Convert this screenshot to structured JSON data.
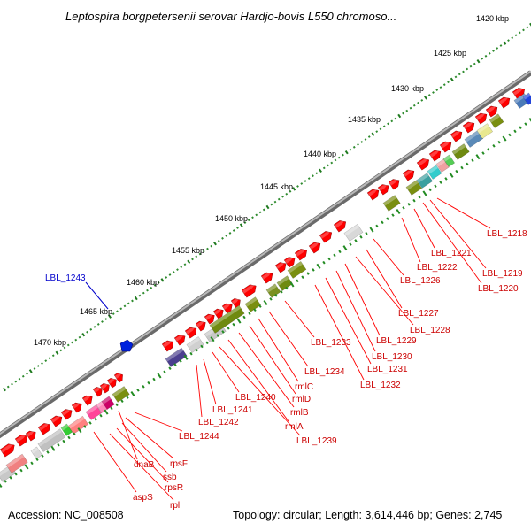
{
  "title": "Leptospira borgpetersenii serovar Hardjo-bovis L550 chromoso...",
  "footer": {
    "accession": "Accession: NC_008508",
    "topology": "Topology: circular; Length: 3,614,446 bp; Genes: 2,745"
  },
  "ticks": [
    "1420 kbp",
    "1425 kbp",
    "1430 kbp",
    "1435 kbp",
    "1440 kbp",
    "1445 kbp",
    "1450 kbp",
    "1455 kbp",
    "1460 kbp",
    "1465 kbp",
    "1470 kbp"
  ],
  "highlight_label": "LBL_1243",
  "gene_labels": [
    "LBL_1218",
    "LBL_1219",
    "LBL_1220",
    "LBL_1221",
    "LBL_1222",
    "LBL_1226",
    "LBL_1227",
    "LBL_1228",
    "LBL_1229",
    "LBL_1230",
    "LBL_1231",
    "LBL_1232",
    "LBL_1233",
    "LBL_1234",
    "rmlC",
    "rmlD",
    "rmlB",
    "rmlA",
    "LBL_1239",
    "LBL_1240",
    "LBL_1241",
    "LBL_1242",
    "LBL_1244",
    "dnaB",
    "rpsF",
    "ssb",
    "rpsR",
    "aspS",
    "rplI"
  ],
  "colors": {
    "backbone": "#808080",
    "forward_gene": "#ff0000",
    "reverse_gene": "#808000",
    "tick_dots": "#228b22",
    "label_red": "#cc0000",
    "label_blue": "#0000cc"
  }
}
